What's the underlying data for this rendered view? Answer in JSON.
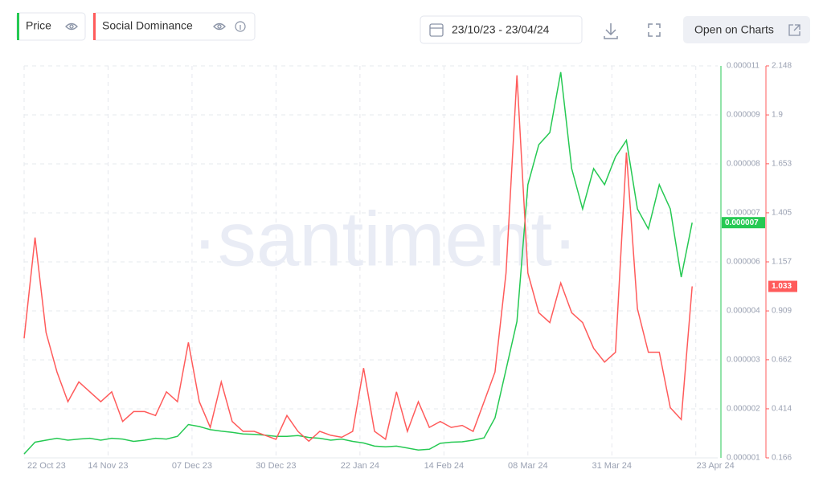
{
  "chart_data": {
    "type": "line",
    "toolbar": {
      "date_range": "23/10/23 - 23/04/24",
      "open_button": "Open on Charts"
    },
    "watermark": "·santiment·",
    "x": [
      "2023-10-22",
      "2023-10-25",
      "2023-10-28",
      "2023-10-31",
      "2023-11-03",
      "2023-11-06",
      "2023-11-09",
      "2023-11-12",
      "2023-11-15",
      "2023-11-18",
      "2023-11-21",
      "2023-11-24",
      "2023-11-27",
      "2023-11-30",
      "2023-12-03",
      "2023-12-06",
      "2023-12-09",
      "2023-12-12",
      "2023-12-15",
      "2023-12-18",
      "2023-12-21",
      "2023-12-24",
      "2023-12-27",
      "2023-12-30",
      "2024-01-02",
      "2024-01-05",
      "2024-01-08",
      "2024-01-11",
      "2024-01-14",
      "2024-01-17",
      "2024-01-20",
      "2024-01-23",
      "2024-01-26",
      "2024-01-29",
      "2024-02-01",
      "2024-02-04",
      "2024-02-07",
      "2024-02-10",
      "2024-02-13",
      "2024-02-16",
      "2024-02-19",
      "2024-02-22",
      "2024-02-25",
      "2024-02-28",
      "2024-03-02",
      "2024-03-05",
      "2024-03-08",
      "2024-03-11",
      "2024-03-14",
      "2024-03-17",
      "2024-03-20",
      "2024-03-23",
      "2024-03-26",
      "2024-03-29",
      "2024-04-01",
      "2024-04-04",
      "2024-04-07",
      "2024-04-10",
      "2024-04-13",
      "2024-04-16",
      "2024-04-19",
      "2024-04-22"
    ],
    "xlim": [
      "2023-10-22",
      "2024-04-29"
    ],
    "xticks": [
      {
        "value": "2023-10-22",
        "label": "22 Oct 23"
      },
      {
        "value": "2023-11-14",
        "label": "14 Nov 23"
      },
      {
        "value": "2023-12-07",
        "label": "07 Dec 23"
      },
      {
        "value": "2023-12-30",
        "label": "30 Dec 23"
      },
      {
        "value": "2024-01-22",
        "label": "22 Jan 24"
      },
      {
        "value": "2024-02-14",
        "label": "14 Feb 24"
      },
      {
        "value": "2024-03-08",
        "label": "08 Mar 24"
      },
      {
        "value": "2024-03-31",
        "label": "31 Mar 24"
      },
      {
        "value": "2024-04-23",
        "label": "23 Apr 24"
      }
    ],
    "ylim": [
      7e-07,
      1.07e-05
    ],
    "yticks": [
      {
        "value": 7e-07,
        "label": "0.000001"
      },
      {
        "value": 1.95e-06,
        "label": "0.000002"
      },
      {
        "value": 3.2e-06,
        "label": "0.000003"
      },
      {
        "value": 4.45e-06,
        "label": "0.000004"
      },
      {
        "value": 5.7e-06,
        "label": "0.000006"
      },
      {
        "value": 6.95e-06,
        "label": "0.000007"
      },
      {
        "value": 8.2e-06,
        "label": "0.000008"
      },
      {
        "value": 9.45e-06,
        "label": "0.000009"
      },
      {
        "value": 1.07e-05,
        "label": "0.000011"
      }
    ],
    "y2lim": [
      0.166,
      2.148
    ],
    "y2ticks": [
      0.166,
      0.414,
      0.662,
      0.909,
      1.157,
      1.405,
      1.653,
      1.9,
      2.148
    ],
    "grid": true,
    "series": [
      {
        "name": "Price",
        "color": "#26c953",
        "last_value_label": "0.000007",
        "values": [
          8e-07,
          1.1e-06,
          1.15e-06,
          1.2e-06,
          1.15e-06,
          1.18e-06,
          1.2e-06,
          1.15e-06,
          1.2e-06,
          1.18e-06,
          1.12e-06,
          1.15e-06,
          1.2e-06,
          1.18e-06,
          1.25e-06,
          1.55e-06,
          1.5e-06,
          1.42e-06,
          1.38e-06,
          1.35e-06,
          1.31e-06,
          1.3e-06,
          1.28e-06,
          1.25e-06,
          1.25e-06,
          1.27e-06,
          1.22e-06,
          1.2e-06,
          1.15e-06,
          1.18e-06,
          1.12e-06,
          1.08e-06,
          1e-06,
          9.8e-07,
          1e-06,
          9.5e-07,
          9e-07,
          9.2e-07,
          1.07e-06,
          1.1e-06,
          1.11e-06,
          1.15e-06,
          1.21e-06,
          1.72e-06,
          2.95e-06,
          4.18e-06,
          7.67e-06,
          8.69e-06,
          9e-06,
          1.054e-05,
          8.08e-06,
          7.05e-06,
          8.08e-06,
          7.67e-06,
          8.38e-06,
          8.8e-06,
          7.05e-06,
          6.54e-06,
          7.67e-06,
          7.05e-06,
          5.31e-06,
          6.7e-06
        ]
      },
      {
        "name": "Social Dominance",
        "color": "#ff5b5b",
        "axis": "y2",
        "values": [
          0.77,
          1.28,
          0.8,
          0.6,
          0.45,
          0.55,
          0.5,
          0.45,
          0.5,
          0.35,
          0.4,
          0.4,
          0.38,
          0.5,
          0.45,
          0.75,
          0.45,
          0.32,
          0.55,
          0.35,
          0.3,
          0.3,
          0.28,
          0.26,
          0.38,
          0.3,
          0.25,
          0.3,
          0.28,
          0.27,
          0.3,
          0.62,
          0.3,
          0.26,
          0.5,
          0.3,
          0.45,
          0.32,
          0.35,
          0.32,
          0.33,
          0.3,
          0.45,
          0.6,
          1.1,
          2.1,
          1.1,
          0.9,
          0.85,
          1.05,
          0.9,
          0.85,
          0.72,
          0.65,
          0.7,
          1.71,
          0.92,
          0.7,
          0.7,
          0.42,
          0.36,
          1.033
        ]
      }
    ]
  }
}
